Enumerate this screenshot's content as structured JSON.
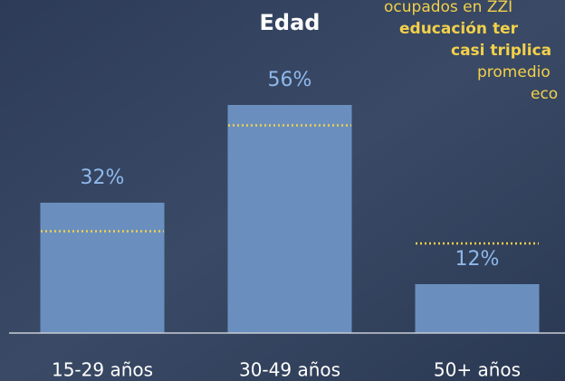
{
  "chart_data": {
    "type": "bar",
    "title": "Edad",
    "categories": [
      "15-29 años",
      "30-49 años",
      "50+ años"
    ],
    "values": [
      32,
      56,
      12
    ],
    "value_labels": [
      "32%",
      "56%",
      "12%"
    ],
    "color": "#6a8fbf",
    "label_color": "#8fb8ea",
    "reference_values": [
      25,
      51,
      22
    ],
    "reference_color": "#f2d04a",
    "ylim": [
      0,
      60
    ],
    "annotation": [
      "ocupados en ZZI",
      "educación ter",
      "casi triplica",
      "promedio",
      "eco"
    ]
  }
}
